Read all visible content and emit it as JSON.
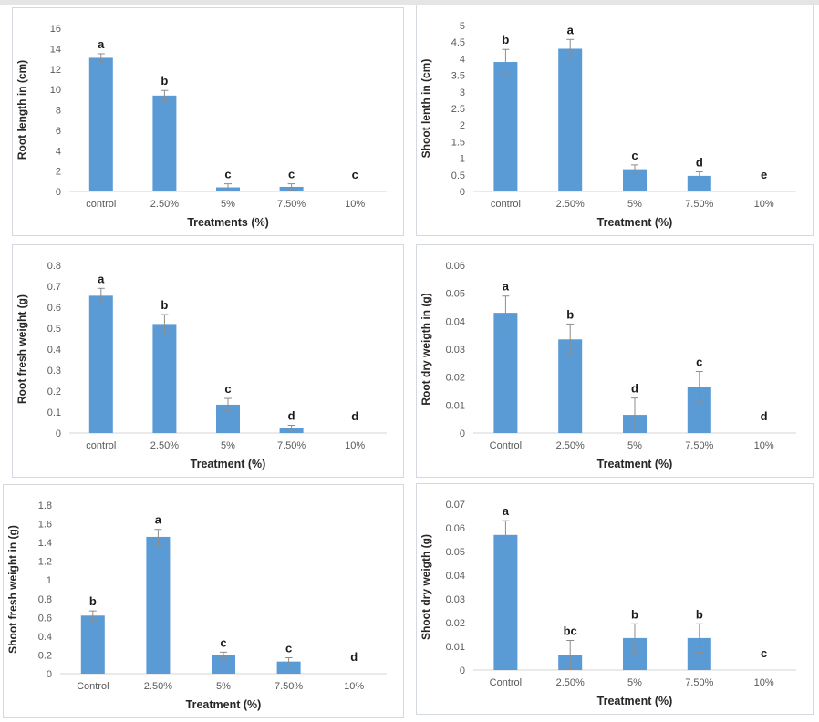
{
  "figure": {
    "description": "Six-panel bar chart figure showing effects of treatments on plant growth parameters",
    "panels": [
      "root-length",
      "shoot-length",
      "root-fresh-weight",
      "root-dry-weight",
      "shoot-fresh-weight",
      "shoot-dry-weight"
    ]
  },
  "style": {
    "bar_fill": "#5b9bd5",
    "error_stroke": "#8c8c8c",
    "baseline_stroke": "#d6d6d6",
    "tick_label_color": "#595959",
    "axis_title_color": "#262626",
    "letter_color": "#1a1a1a",
    "panel_border": "#d3d9de",
    "top_strip": "#e5e5e5",
    "background": "#ffffff"
  },
  "chart_data": [
    {
      "type": "bar",
      "id": "root-length",
      "title": "",
      "ylabel": "Root length in (cm)",
      "xlabel": "Treatments (%)",
      "categories": [
        "control",
        "2.50%",
        "5%",
        "7.50%",
        "10%"
      ],
      "values": [
        13.1,
        9.4,
        0.4,
        0.45,
        0
      ],
      "errors": [
        0.4,
        0.5,
        0.35,
        0.3,
        0
      ],
      "letters": [
        "a",
        "b",
        "c",
        "c",
        "c"
      ],
      "ylim": [
        0,
        16
      ],
      "yticks": [
        0,
        2,
        4,
        6,
        8,
        10,
        12,
        14,
        16
      ],
      "grid": false,
      "legend": false
    },
    {
      "type": "bar",
      "id": "shoot-length",
      "title": "",
      "ylabel": "Shoot lenth in (cm)",
      "xlabel": "Treatment (%)",
      "categories": [
        "control",
        "2.50%",
        "5%",
        "7.50%",
        "10%"
      ],
      "values": [
        3.9,
        4.3,
        0.67,
        0.47,
        0
      ],
      "errors": [
        0.38,
        0.28,
        0.13,
        0.12,
        0
      ],
      "letters": [
        "b",
        "a",
        "c",
        "d",
        "e"
      ],
      "ylim": [
        0,
        5
      ],
      "yticks": [
        0,
        0.5,
        1,
        1.5,
        2,
        2.5,
        3,
        3.5,
        4,
        4.5,
        5
      ],
      "grid": false,
      "legend": false
    },
    {
      "type": "bar",
      "id": "root-fresh-weight",
      "title": "",
      "ylabel": "Root fresh weight (g)",
      "xlabel": "Treatment (%)",
      "categories": [
        "control",
        "2.50%",
        "5%",
        "7.50%",
        "10%"
      ],
      "values": [
        0.655,
        0.52,
        0.135,
        0.025,
        0
      ],
      "errors": [
        0.035,
        0.045,
        0.03,
        0.012,
        0
      ],
      "letters": [
        "a",
        "b",
        "c",
        "d",
        "d"
      ],
      "ylim": [
        0,
        0.8
      ],
      "yticks": [
        0,
        0.1,
        0.2,
        0.3,
        0.4,
        0.5,
        0.6,
        0.7,
        0.8
      ],
      "grid": false,
      "legend": false
    },
    {
      "type": "bar",
      "id": "root-dry-weight",
      "title": "",
      "ylabel": "Root dry weigth in (g)",
      "xlabel": "Treatment (%)",
      "categories": [
        "Control",
        "2.50%",
        "5%",
        "7.50%",
        "10%"
      ],
      "values": [
        0.043,
        0.0335,
        0.0065,
        0.0165,
        0
      ],
      "errors": [
        0.006,
        0.0055,
        0.006,
        0.0055,
        0
      ],
      "letters": [
        "a",
        "b",
        "d",
        "c",
        "d"
      ],
      "ylim": [
        0,
        0.06
      ],
      "yticks": [
        0,
        0.01,
        0.02,
        0.03,
        0.04,
        0.05,
        0.06
      ],
      "grid": false,
      "legend": false
    },
    {
      "type": "bar",
      "id": "shoot-fresh-weight",
      "title": "",
      "ylabel": "Shoot fresh weight in (g)",
      "xlabel": "Treatment (%)",
      "categories": [
        "Control",
        "2.50%",
        "5%",
        "7.50%",
        "10%"
      ],
      "values": [
        0.62,
        1.46,
        0.195,
        0.13,
        0
      ],
      "errors": [
        0.05,
        0.08,
        0.035,
        0.04,
        0
      ],
      "letters": [
        "b",
        "a",
        "c",
        "c",
        "d"
      ],
      "ylim": [
        0,
        1.8
      ],
      "yticks": [
        0,
        0.2,
        0.4,
        0.6,
        0.8,
        1,
        1.2,
        1.4,
        1.6,
        1.8
      ],
      "grid": false,
      "legend": false
    },
    {
      "type": "bar",
      "id": "shoot-dry-weight",
      "title": "",
      "ylabel": "Shoot dry weigth (g)",
      "xlabel": "Treatment (%)",
      "categories": [
        "Control",
        "2.50%",
        "5%",
        "7.50%",
        "10%"
      ],
      "values": [
        0.057,
        0.0065,
        0.0135,
        0.0135,
        0
      ],
      "errors": [
        0.006,
        0.006,
        0.006,
        0.006,
        0
      ],
      "letters": [
        "a",
        "bc",
        "b",
        "b",
        "c"
      ],
      "ylim": [
        0,
        0.07
      ],
      "yticks": [
        0,
        0.01,
        0.02,
        0.03,
        0.04,
        0.05,
        0.06,
        0.07
      ],
      "grid": false,
      "legend": false
    }
  ]
}
